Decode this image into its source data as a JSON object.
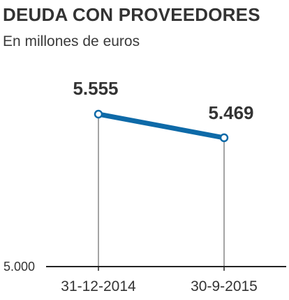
{
  "chart_data": {
    "type": "line",
    "title": "DEUDA CON PROVEEDORES",
    "subtitle": "En millones de euros",
    "xlabel": "",
    "ylabel": "",
    "categories": [
      "31-12-2014",
      "30-9-2015"
    ],
    "series": [
      {
        "values": [
          5555,
          5469
        ],
        "value_labels": [
          "5.555",
          "5.469"
        ],
        "color": "#0e6aa8"
      }
    ],
    "yticks": [
      {
        "value": 5000,
        "label": "5.000"
      }
    ],
    "ylim": [
      5000,
      5555
    ],
    "grid": false,
    "legend": "none"
  }
}
